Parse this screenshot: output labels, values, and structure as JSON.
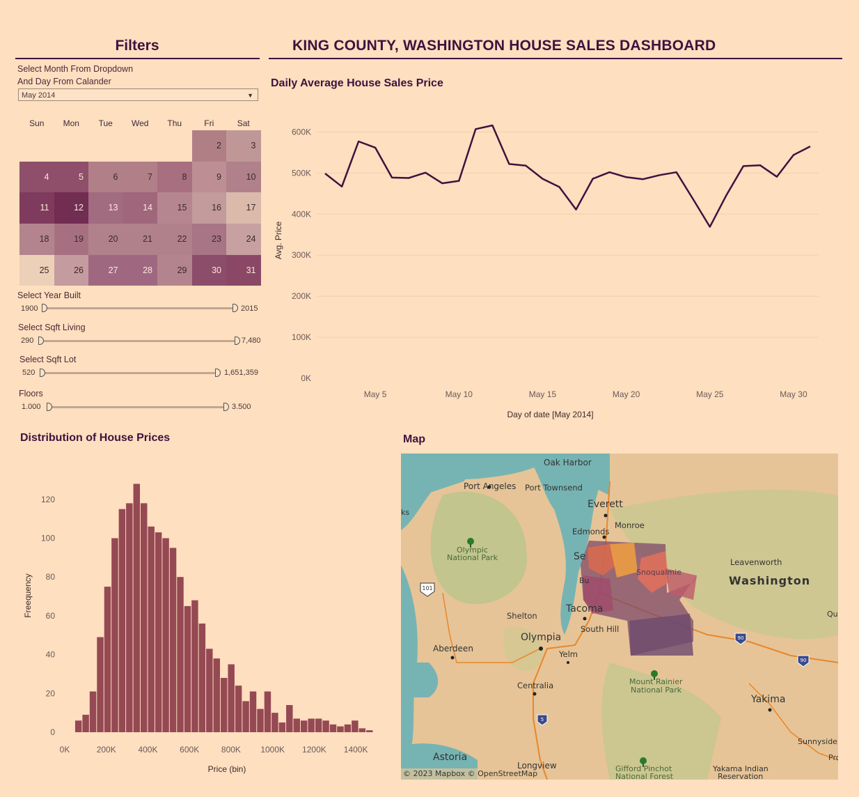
{
  "filters": {
    "title": "Filters",
    "instruction_line1": "Select Month From Dropdown",
    "instruction_line2": "And Day From Calander",
    "month_selected": "May 2014",
    "calendar": {
      "weekdays": [
        "Sun",
        "Mon",
        "Tue",
        "Wed",
        "Thu",
        "Fri",
        "Sat"
      ],
      "days": [
        {
          "day": "2",
          "week": 0,
          "dow": 5,
          "color": "#b07f86",
          "text": "#3a2a2a"
        },
        {
          "day": "3",
          "week": 0,
          "dow": 6,
          "color": "#c09797",
          "text": "#3a2a2a"
        },
        {
          "day": "4",
          "week": 1,
          "dow": 0,
          "color": "#8f4f6a",
          "text": "#fbe7dc"
        },
        {
          "day": "5",
          "week": 1,
          "dow": 1,
          "color": "#8f4f6a",
          "text": "#fbe7dc"
        },
        {
          "day": "6",
          "week": 1,
          "dow": 2,
          "color": "#b17f88",
          "text": "#3a2a2a"
        },
        {
          "day": "7",
          "week": 1,
          "dow": 3,
          "color": "#b17f88",
          "text": "#3a2a2a"
        },
        {
          "day": "8",
          "week": 1,
          "dow": 4,
          "color": "#a86f80",
          "text": "#3a2a2a"
        },
        {
          "day": "9",
          "week": 1,
          "dow": 5,
          "color": "#bd8f94",
          "text": "#3a2a2a"
        },
        {
          "day": "10",
          "week": 1,
          "dow": 6,
          "color": "#b0818a",
          "text": "#3a2a2a"
        },
        {
          "day": "11",
          "week": 2,
          "dow": 0,
          "color": "#7f3b5d",
          "text": "#fbe7dc"
        },
        {
          "day": "12",
          "week": 2,
          "dow": 1,
          "color": "#722d52",
          "text": "#fbe7dc"
        },
        {
          "day": "13",
          "week": 2,
          "dow": 2,
          "color": "#a16b80",
          "text": "#fbe7dc"
        },
        {
          "day": "14",
          "week": 2,
          "dow": 3,
          "color": "#9f667c",
          "text": "#fbe7dc"
        },
        {
          "day": "15",
          "week": 2,
          "dow": 4,
          "color": "#b58690",
          "text": "#3a2a2a"
        },
        {
          "day": "16",
          "week": 2,
          "dow": 5,
          "color": "#c39b9c",
          "text": "#3a2a2a"
        },
        {
          "day": "17",
          "week": 2,
          "dow": 6,
          "color": "#dbbaac",
          "text": "#3a2a2a"
        },
        {
          "day": "18",
          "week": 3,
          "dow": 0,
          "color": "#b3848d",
          "text": "#3a2a2a"
        },
        {
          "day": "19",
          "week": 3,
          "dow": 1,
          "color": "#a77082",
          "text": "#3a2a2a"
        },
        {
          "day": "20",
          "week": 3,
          "dow": 2,
          "color": "#b1818b",
          "text": "#3a2a2a"
        },
        {
          "day": "21",
          "week": 3,
          "dow": 3,
          "color": "#b1818b",
          "text": "#3a2a2a"
        },
        {
          "day": "22",
          "week": 3,
          "dow": 4,
          "color": "#b1818b",
          "text": "#3a2a2a"
        },
        {
          "day": "23",
          "week": 3,
          "dow": 5,
          "color": "#a77585",
          "text": "#3a2a2a"
        },
        {
          "day": "24",
          "week": 3,
          "dow": 6,
          "color": "#c7a0a1",
          "text": "#3a2a2a"
        },
        {
          "day": "25",
          "week": 4,
          "dow": 0,
          "color": "#ecd0b8",
          "text": "#3a2a2a"
        },
        {
          "day": "26",
          "week": 4,
          "dow": 1,
          "color": "#c49b9f",
          "text": "#3a2a2a"
        },
        {
          "day": "27",
          "week": 4,
          "dow": 2,
          "color": "#9f6880",
          "text": "#fbe7dc"
        },
        {
          "day": "28",
          "week": 4,
          "dow": 3,
          "color": "#9f6880",
          "text": "#fbe7dc"
        },
        {
          "day": "29",
          "week": 4,
          "dow": 4,
          "color": "#b3848d",
          "text": "#3a2a2a"
        },
        {
          "day": "30",
          "week": 4,
          "dow": 5,
          "color": "#8c4d6a",
          "text": "#fbe7dc"
        },
        {
          "day": "31",
          "week": 4,
          "dow": 6,
          "color": "#8a4866",
          "text": "#fbe7dc"
        }
      ]
    },
    "sliders": [
      {
        "label": "Select Year Built",
        "min": "1900",
        "max": "2015"
      },
      {
        "label": "Select Sqft Living",
        "min": "290",
        "max": "7,480"
      },
      {
        "label": "Select Sqft Lot",
        "min": "520",
        "max": "1,651,359"
      },
      {
        "label": "Floors",
        "min": "1.000",
        "max": "3.500"
      }
    ]
  },
  "dashboard_title": "KING COUNTY, WASHINGTON HOUSE SALES DASHBOARD",
  "line_chart_title": "Daily Average House Sales Price",
  "histogram_title": "Distribution of House Prices",
  "map": {
    "title": "Map",
    "attribution": "© 2023 Mapbox  © OpenStreetMap",
    "places": [
      "Oak Harbor",
      "Port Angeles",
      "Port Townsend",
      "Everett",
      "Monroe",
      "Edmonds",
      "Olympic",
      "National Park",
      "Leavenworth",
      "Washington",
      "Shelton",
      "Olympia",
      "South Hill",
      "Tacoma",
      "Aberdeen",
      "Yelm",
      "Mount Rainier",
      "National Park",
      "Centralia",
      "Yakima",
      "Sunnyside",
      "Astoria",
      "Longview",
      "Gifford Pinchot",
      "National Forest",
      "Yakama Indian",
      "Reservation",
      "Quin",
      "Pro",
      "ks",
      "Se",
      "Bu",
      "Snoqualmie"
    ],
    "shields": [
      "101",
      "90",
      "90",
      "5"
    ],
    "colors": {
      "water": "#76b4b3",
      "land": "#e6c497",
      "forest": "#b9c58b"
    }
  },
  "chart_data": [
    {
      "type": "line",
      "title": "Daily Average House Sales Price",
      "xlabel": "Day of date [May 2014]",
      "ylabel": "Avg. Price",
      "x": [
        2,
        3,
        4,
        5,
        6,
        7,
        8,
        9,
        10,
        11,
        12,
        13,
        14,
        15,
        16,
        17,
        18,
        19,
        20,
        21,
        22,
        23,
        24,
        25,
        26,
        27,
        28,
        29,
        30,
        31
      ],
      "values": [
        499000,
        467000,
        577000,
        562000,
        489000,
        488000,
        501000,
        475000,
        481000,
        607000,
        616000,
        522000,
        518000,
        486000,
        466000,
        411000,
        486000,
        502000,
        490000,
        485000,
        495000,
        502000,
        436000,
        369000,
        447000,
        517000,
        519000,
        491000,
        544000,
        565000
      ],
      "ylim": [
        0,
        650000
      ],
      "yticks": [
        "0K",
        "100K",
        "200K",
        "300K",
        "400K",
        "500K",
        "600K"
      ],
      "xticks": [
        "May 5",
        "May 10",
        "May 15",
        "May 20",
        "May 25",
        "May 30"
      ],
      "xtick_values": [
        5,
        10,
        15,
        20,
        25,
        30
      ],
      "color": "#3d1240",
      "grid": true
    },
    {
      "type": "bar",
      "title": "Distribution of House Prices",
      "xlabel": "Price (bin)",
      "ylabel": "Freequency",
      "bin_width": 35000,
      "bin_start": 50000,
      "values": [
        6,
        9,
        21,
        49,
        75,
        100,
        115,
        118,
        128,
        118,
        106,
        103,
        100,
        95,
        80,
        65,
        68,
        56,
        43,
        38,
        28,
        35,
        24,
        16,
        21,
        12,
        21,
        10,
        5,
        14,
        7,
        6,
        7,
        7,
        6,
        4,
        3,
        4,
        6,
        2,
        1
      ],
      "ylim": [
        0,
        135
      ],
      "yticks": [
        "0",
        "20",
        "40",
        "60",
        "80",
        "100",
        "120"
      ],
      "xticks": [
        "0K",
        "200K",
        "400K",
        "600K",
        "800K",
        "1000K",
        "1200K",
        "1400K"
      ],
      "xtick_values": [
        0,
        200000,
        400000,
        600000,
        800000,
        1000000,
        1200000,
        1400000
      ],
      "color": "#954953"
    }
  ]
}
